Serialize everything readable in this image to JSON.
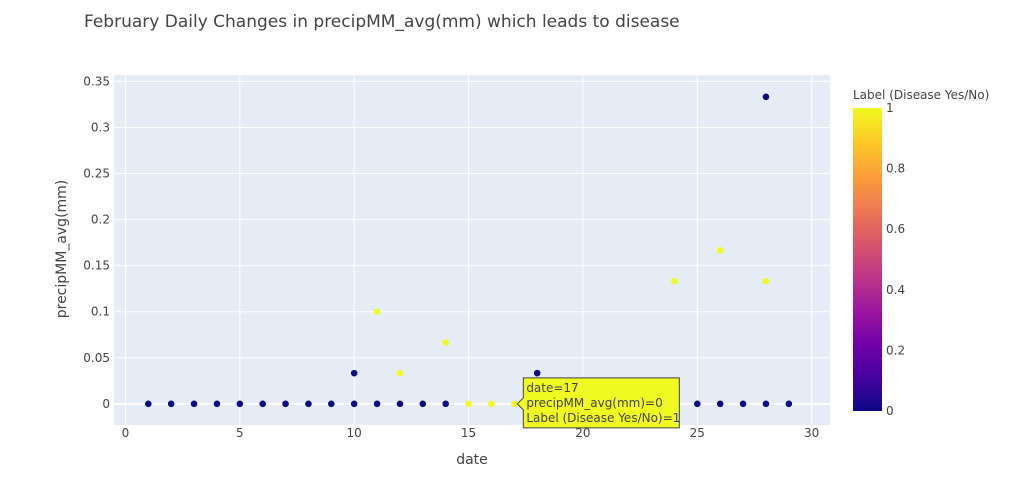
{
  "chart_data": {
    "type": "scatter",
    "title": "February Daily Changes in precipMM_avg(mm) which leads to disease",
    "xlabel": "date",
    "ylabel": "precipMM_avg(mm)",
    "xlim": [
      -0.5,
      30.8
    ],
    "ylim": [
      -0.023,
      0.357
    ],
    "x_ticks": [
      0,
      5,
      10,
      15,
      20,
      25,
      30
    ],
    "y_ticks": [
      0,
      0.05,
      0.1,
      0.15,
      0.2,
      0.25,
      0.3,
      0.35
    ],
    "grid": true,
    "color_by": "Label (Disease Yes/No)",
    "colorbar": {
      "title": "Label (Disease Yes/No)",
      "range": [
        0,
        1
      ],
      "ticks": [
        0,
        0.2,
        0.4,
        0.6,
        0.8,
        1
      ],
      "colorscale": [
        "#0d0887",
        "#46039f",
        "#7201a8",
        "#9c179e",
        "#bd3786",
        "#d8576b",
        "#ed7953",
        "#fb9f3a",
        "#fdca26",
        "#f0f921"
      ]
    },
    "points": [
      {
        "x": 1,
        "y": 0,
        "label": 0
      },
      {
        "x": 2,
        "y": 0,
        "label": 0
      },
      {
        "x": 3,
        "y": 0,
        "label": 0
      },
      {
        "x": 4,
        "y": 0,
        "label": 0
      },
      {
        "x": 5,
        "y": 0,
        "label": 0
      },
      {
        "x": 6,
        "y": 0,
        "label": 0
      },
      {
        "x": 7,
        "y": 0,
        "label": 0
      },
      {
        "x": 8,
        "y": 0,
        "label": 0
      },
      {
        "x": 9,
        "y": 0,
        "label": 0
      },
      {
        "x": 10,
        "y": 0,
        "label": 0
      },
      {
        "x": 10,
        "y": 0.0333,
        "label": 0
      },
      {
        "x": 11,
        "y": 0,
        "label": 0
      },
      {
        "x": 11,
        "y": 0.1,
        "label": 1
      },
      {
        "x": 12,
        "y": 0,
        "label": 0
      },
      {
        "x": 12,
        "y": 0.0333,
        "label": 1
      },
      {
        "x": 13,
        "y": 0,
        "label": 0
      },
      {
        "x": 14,
        "y": 0,
        "label": 0
      },
      {
        "x": 14,
        "y": 0.0667,
        "label": 1
      },
      {
        "x": 15,
        "y": 0,
        "label": 1
      },
      {
        "x": 16,
        "y": 0,
        "label": 1
      },
      {
        "x": 17,
        "y": 0,
        "label": 1
      },
      {
        "x": 18,
        "y": 0.0333,
        "label": 0
      },
      {
        "x": 24,
        "y": 0.1333,
        "label": 1
      },
      {
        "x": 25,
        "y": 0,
        "label": 0
      },
      {
        "x": 26,
        "y": 0,
        "label": 0
      },
      {
        "x": 26,
        "y": 0.1667,
        "label": 1
      },
      {
        "x": 27,
        "y": 0,
        "label": 0
      },
      {
        "x": 28,
        "y": 0,
        "label": 0
      },
      {
        "x": 28,
        "y": 0.1333,
        "label": 1
      },
      {
        "x": 28,
        "y": 0.3333,
        "label": 0
      },
      {
        "x": 29,
        "y": 0,
        "label": 0
      }
    ],
    "hover": {
      "point_x": 17,
      "point_y": 0,
      "lines": [
        "date=17",
        "precipMM_avg(mm)=0",
        "Label (Disease Yes/No)=1"
      ],
      "background": "#f0f921"
    }
  }
}
